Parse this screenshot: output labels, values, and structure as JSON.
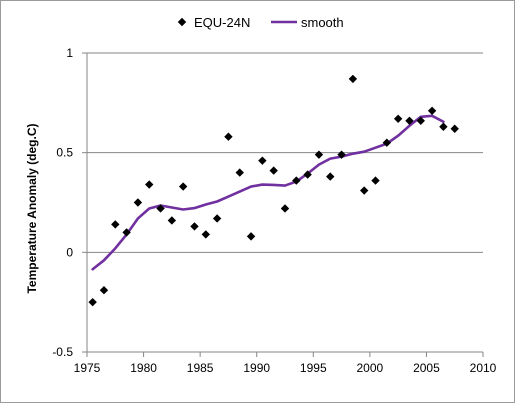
{
  "chart_data": {
    "type": "scatter",
    "title": "",
    "xlabel": "",
    "ylabel": "Temperature Anomaly (deg.C)",
    "xlim": [
      1975,
      2010
    ],
    "ylim": [
      -0.5,
      1
    ],
    "xticks": [
      1975,
      1980,
      1985,
      1990,
      1995,
      2000,
      2005,
      2010
    ],
    "yticks": [
      -0.5,
      0,
      0.5,
      1
    ],
    "ytick_labels": [
      "-0.5",
      "0",
      "0.5",
      "1"
    ],
    "grid": "horizontal",
    "legend_position": "top",
    "series": [
      {
        "name": "EQU-24N",
        "kind": "markers",
        "marker": "diamond",
        "color": "#000000",
        "points": [
          [
            1975.5,
            -0.25
          ],
          [
            1976.5,
            -0.19
          ],
          [
            1977.5,
            0.14
          ],
          [
            1978.5,
            0.1
          ],
          [
            1979.5,
            0.25
          ],
          [
            1980.5,
            0.34
          ],
          [
            1981.5,
            0.22
          ],
          [
            1982.5,
            0.16
          ],
          [
            1983.5,
            0.33
          ],
          [
            1984.5,
            0.13
          ],
          [
            1985.5,
            0.09
          ],
          [
            1986.5,
            0.17
          ],
          [
            1987.5,
            0.58
          ],
          [
            1988.5,
            0.4
          ],
          [
            1989.5,
            0.08
          ],
          [
            1990.5,
            0.46
          ],
          [
            1991.5,
            0.41
          ],
          [
            1992.5,
            0.22
          ],
          [
            1993.5,
            0.36
          ],
          [
            1994.5,
            0.39
          ],
          [
            1995.5,
            0.49
          ],
          [
            1996.5,
            0.38
          ],
          [
            1997.5,
            0.49
          ],
          [
            1998.5,
            0.87
          ],
          [
            1999.5,
            0.31
          ],
          [
            2000.5,
            0.36
          ],
          [
            2001.5,
            0.55
          ],
          [
            2002.5,
            0.67
          ],
          [
            2003.5,
            0.66
          ],
          [
            2004.5,
            0.66
          ],
          [
            2005.5,
            0.71
          ],
          [
            2006.5,
            0.63
          ],
          [
            2007.5,
            0.62
          ]
        ]
      },
      {
        "name": "smooth",
        "kind": "line",
        "color": "#7030a0",
        "points": [
          [
            1975.5,
            -0.085
          ],
          [
            1976.5,
            -0.04
          ],
          [
            1977.5,
            0.02
          ],
          [
            1978.5,
            0.09
          ],
          [
            1979.5,
            0.17
          ],
          [
            1980.5,
            0.22
          ],
          [
            1981.5,
            0.235
          ],
          [
            1982.5,
            0.225
          ],
          [
            1983.5,
            0.215
          ],
          [
            1984.5,
            0.222
          ],
          [
            1985.5,
            0.24
          ],
          [
            1986.5,
            0.255
          ],
          [
            1987.5,
            0.28
          ],
          [
            1988.5,
            0.305
          ],
          [
            1989.5,
            0.33
          ],
          [
            1990.5,
            0.34
          ],
          [
            1991.5,
            0.338
          ],
          [
            1992.5,
            0.335
          ],
          [
            1993.5,
            0.355
          ],
          [
            1994.5,
            0.395
          ],
          [
            1995.5,
            0.44
          ],
          [
            1996.5,
            0.47
          ],
          [
            1997.5,
            0.48
          ],
          [
            1998.5,
            0.495
          ],
          [
            1999.5,
            0.505
          ],
          [
            2000.5,
            0.525
          ],
          [
            2001.5,
            0.545
          ],
          [
            2002.5,
            0.585
          ],
          [
            2003.5,
            0.635
          ],
          [
            2004.5,
            0.68
          ],
          [
            2005.5,
            0.685
          ],
          [
            2006.5,
            0.655
          ]
        ]
      }
    ]
  }
}
